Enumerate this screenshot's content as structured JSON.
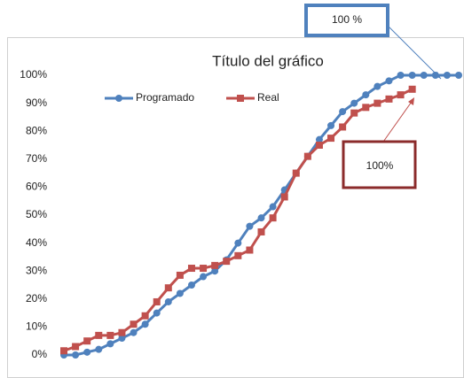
{
  "chart_data": {
    "type": "line",
    "title": "Título del gráfico",
    "categories": [
      null,
      null,
      null,
      null,
      null,
      null,
      null,
      null,
      null,
      null,
      null,
      null,
      null,
      null,
      null,
      null,
      null,
      null,
      null,
      null,
      null,
      null,
      null,
      null,
      null,
      null,
      null,
      null,
      null,
      null,
      null,
      null,
      null,
      null,
      null
    ],
    "series": [
      {
        "name": "Programado",
        "color": "#4f81bd",
        "marker": "circle",
        "values": [
          0,
          0,
          1,
          2,
          4,
          6,
          8,
          11,
          15,
          19,
          22,
          25,
          28,
          30,
          34,
          40,
          46,
          49,
          53,
          59,
          65,
          71,
          77,
          82,
          87,
          90,
          93,
          96,
          98,
          100,
          100,
          100,
          100,
          100,
          100
        ]
      },
      {
        "name": "Real",
        "color": "#c0504d",
        "marker": "square",
        "values": [
          1.5,
          3,
          5,
          7,
          7,
          8,
          11,
          14,
          19,
          24,
          28.5,
          31,
          31,
          32,
          33.5,
          35.5,
          37.5,
          44,
          49,
          56.5,
          65,
          71,
          75,
          77.5,
          81.5,
          86.5,
          88.5,
          90,
          91.5,
          93,
          95,
          null,
          null,
          null,
          null
        ]
      }
    ],
    "ylim": [
      0,
      100
    ],
    "yticks": [
      {
        "value": 0,
        "label": "0%"
      },
      {
        "value": 10,
        "label": "10%"
      },
      {
        "value": 20,
        "label": "20%"
      },
      {
        "value": 30,
        "label": "30%"
      },
      {
        "value": 40,
        "label": "40%"
      },
      {
        "value": 50,
        "label": "50%"
      },
      {
        "value": 60,
        "label": "60%"
      },
      {
        "value": 70,
        "label": "70%"
      },
      {
        "value": 80,
        "label": "80%"
      },
      {
        "value": 90,
        "label": "90%"
      },
      {
        "value": 100,
        "label": "100%"
      }
    ],
    "grid": false,
    "legend": "top-left",
    "annotations": [
      "100 %",
      "100%"
    ]
  }
}
